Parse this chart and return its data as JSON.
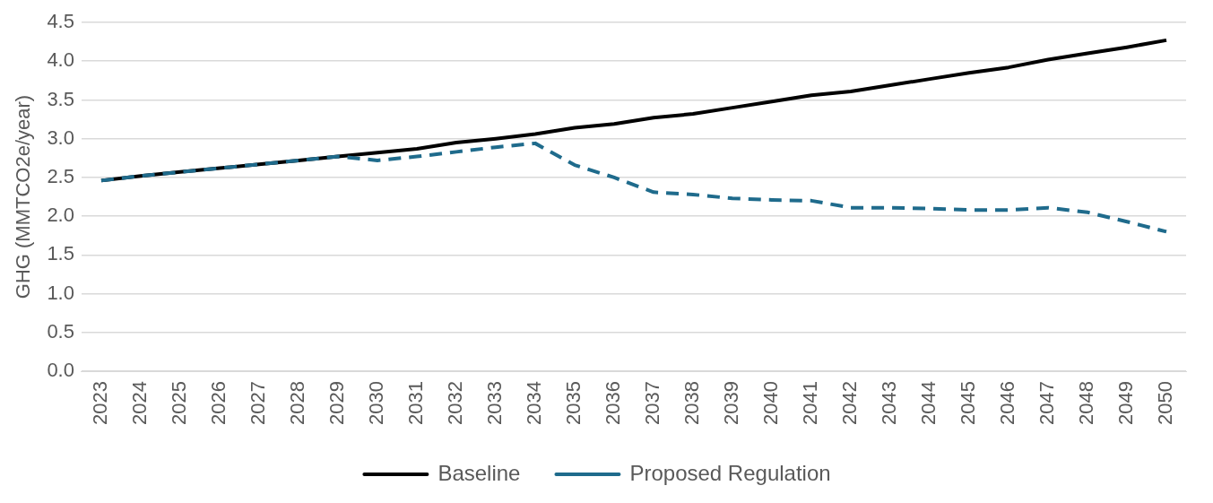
{
  "chart_data": {
    "type": "line",
    "ylabel": "GHG (MMTCO2e/year)",
    "categories": [
      "2023",
      "2024",
      "2025",
      "2026",
      "2027",
      "2028",
      "2029",
      "2030",
      "2031",
      "2032",
      "2033",
      "2034",
      "2035",
      "2036",
      "2037",
      "2038",
      "2039",
      "2040",
      "2041",
      "2042",
      "2043",
      "2044",
      "2045",
      "2046",
      "2047",
      "2048",
      "2049",
      "2050"
    ],
    "series": [
      {
        "name": "Baseline",
        "color": "#000000",
        "line_style": "solid",
        "values": [
          2.46,
          2.52,
          2.57,
          2.62,
          2.67,
          2.72,
          2.77,
          2.82,
          2.87,
          2.95,
          3.0,
          3.06,
          3.14,
          3.19,
          3.27,
          3.32,
          3.4,
          3.48,
          3.56,
          3.61,
          3.69,
          3.77,
          3.85,
          3.92,
          4.02,
          4.1,
          4.18,
          4.27
        ]
      },
      {
        "name": "Proposed Regulation",
        "color": "#1f6b8c",
        "line_style": "dashed",
        "values": [
          2.46,
          2.52,
          2.57,
          2.62,
          2.67,
          2.72,
          2.77,
          2.72,
          2.77,
          2.83,
          2.89,
          2.94,
          2.66,
          2.5,
          2.31,
          2.28,
          2.23,
          2.21,
          2.2,
          2.11,
          2.11,
          2.1,
          2.08,
          2.08,
          2.11,
          2.05,
          1.93,
          1.8
        ]
      }
    ],
    "ylim": [
      0,
      4.5
    ],
    "yticks": [
      {
        "value": 0,
        "label": "0.0"
      },
      {
        "value": 0.5,
        "label": "0.5"
      },
      {
        "value": 1,
        "label": "1.0"
      },
      {
        "value": 1.5,
        "label": "1.5"
      },
      {
        "value": 2,
        "label": "2.0"
      },
      {
        "value": 2.5,
        "label": "2.5"
      },
      {
        "value": 3,
        "label": "3.0"
      },
      {
        "value": 3.5,
        "label": "3.5"
      },
      {
        "value": 4,
        "label": "4.0"
      },
      {
        "value": 4.5,
        "label": "4.5"
      }
    ],
    "grid": "y",
    "legend": "bottom",
    "marker": "none"
  }
}
